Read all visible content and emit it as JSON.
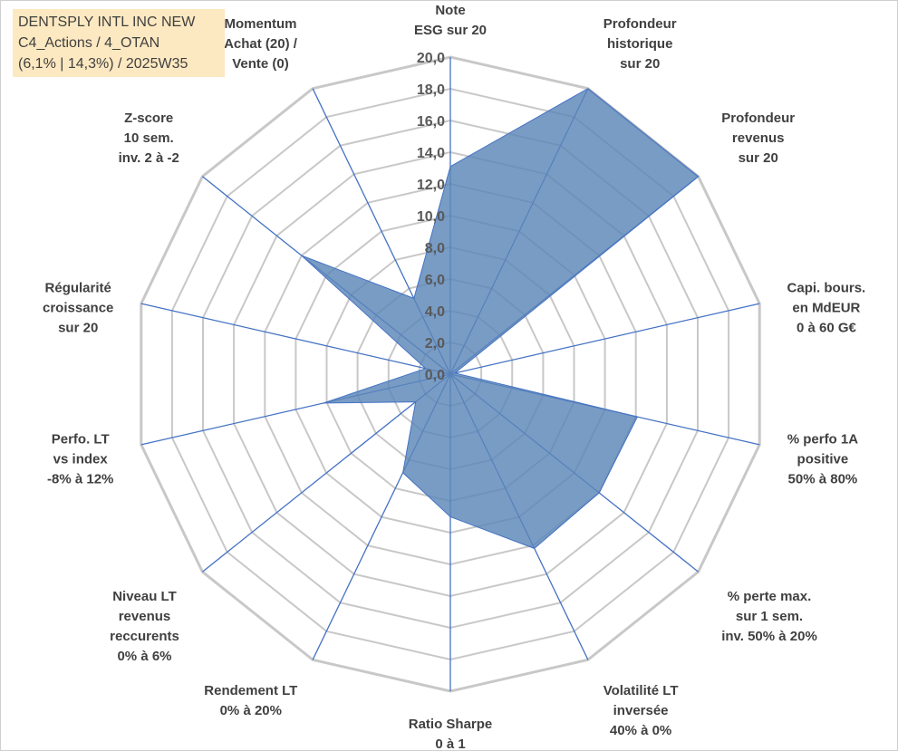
{
  "header": {
    "line1": "DENTSPLY INTL INC NEW",
    "line2": "C4_Actions / 4_OTAN",
    "line3": "(6,1% | 14,3%) / 2025W35"
  },
  "chart_data": {
    "type": "radar",
    "r_range": [
      0,
      20
    ],
    "r_ticks": [
      "0,0",
      "2,0",
      "4,0",
      "6,0",
      "8,0",
      "10,0",
      "12,0",
      "14,0",
      "16,0",
      "18,0",
      "20,0"
    ],
    "axes": [
      {
        "label": [
          "Note",
          "ESG sur 20"
        ],
        "value": 13.1
      },
      {
        "label": [
          "Profondeur",
          "historique",
          "sur 20"
        ],
        "value": 20.0
      },
      {
        "label": [
          "Profondeur",
          "revenus",
          "sur 20"
        ],
        "value": 20.0
      },
      {
        "label": [
          "Capi. bours.",
          "en MdEUR",
          "0 à 60 G€"
        ],
        "value": 0.3
      },
      {
        "label": [
          "% perfo 1A",
          "positive",
          "50% à 80%"
        ],
        "value": 12.1
      },
      {
        "label": [
          "% perte max.",
          "sur 1 sem.",
          "inv. 50% à 20%"
        ],
        "value": 12.0
      },
      {
        "label": [
          "Volatilité LT",
          "inversée",
          "40% à 0%"
        ],
        "value": 12.2
      },
      {
        "label": [
          "Ratio Sharpe",
          "0 à 1"
        ],
        "value": 9.0
      },
      {
        "label": [
          "Rendement LT",
          "0% à 20%"
        ],
        "value": 6.9
      },
      {
        "label": [
          "Niveau LT",
          "revenus",
          "reccurents",
          "0% à 6%"
        ],
        "value": 2.8
      },
      {
        "label": [
          "Perfo. LT",
          "vs index",
          "-8% à 12%"
        ],
        "value": 8.2
      },
      {
        "label": [
          "Régularité",
          "croissance",
          "sur 20"
        ],
        "value": 1.6
      },
      {
        "label": [
          "Z-score",
          "10 sem.",
          "inv. 2 à -2"
        ],
        "value": 12.0
      },
      {
        "label": [
          "Momentum",
          "Achat (20) /",
          "Vente (0)"
        ],
        "value": 5.3
      }
    ],
    "colors": {
      "fill": "#5b86b8",
      "stroke": "#4472c4",
      "grid": "#c8c8c8",
      "spoke": "#4472c4"
    }
  }
}
